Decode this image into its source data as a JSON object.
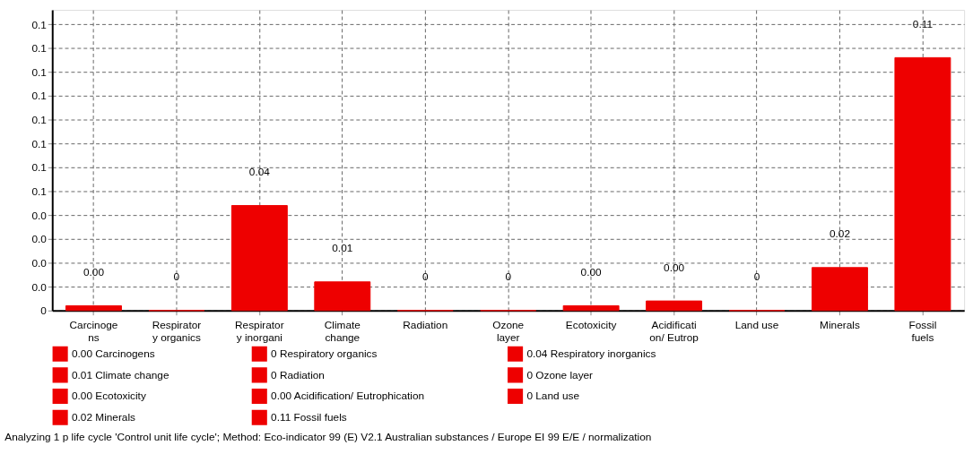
{
  "chart_data": {
    "type": "bar",
    "categories": [
      "Carcinoge\nns",
      "Respirator\ny organics",
      "Respirator\ny inorgani",
      "Climate\nchange",
      "Radiation",
      "Ozone\nlayer",
      "Ecotoxicity",
      "Acidificati\non/ Eutrop",
      "Land use",
      "Minerals",
      "Fossil\nfuels"
    ],
    "series": [
      {
        "name": "0.00 Carcinogens",
        "color": "#ee0000",
        "values": [
          0.002,
          null,
          null,
          null,
          null,
          null,
          null,
          null,
          null,
          null,
          null
        ],
        "value_labels": [
          "0.00",
          null,
          null,
          null,
          null,
          null,
          null,
          null,
          null,
          null,
          null
        ]
      },
      {
        "name": "0 Respiratory organics",
        "color": "#ee0000",
        "values": [
          null,
          0,
          null,
          null,
          null,
          null,
          null,
          null,
          null,
          null,
          null
        ],
        "value_labels": [
          null,
          "0",
          null,
          null,
          null,
          null,
          null,
          null,
          null,
          null,
          null
        ]
      },
      {
        "name": "0.04 Respiratory inorganics",
        "color": "#ee0000",
        "values": [
          null,
          null,
          0.044,
          null,
          null,
          null,
          null,
          null,
          null,
          null,
          null
        ],
        "value_labels": [
          null,
          null,
          "0.04",
          null,
          null,
          null,
          null,
          null,
          null,
          null,
          null
        ]
      },
      {
        "name": "0.01 Climate change",
        "color": "#ee0000",
        "values": [
          null,
          null,
          null,
          0.012,
          null,
          null,
          null,
          null,
          null,
          null,
          null
        ],
        "value_labels": [
          null,
          null,
          null,
          "0.01",
          null,
          null,
          null,
          null,
          null,
          null,
          null
        ]
      },
      {
        "name": "0 Radiation",
        "color": "#ee0000",
        "values": [
          null,
          null,
          null,
          null,
          0,
          null,
          null,
          null,
          null,
          null,
          null
        ],
        "value_labels": [
          null,
          null,
          null,
          null,
          "0",
          null,
          null,
          null,
          null,
          null,
          null
        ]
      },
      {
        "name": "0 Ozone layer",
        "color": "#ee0000",
        "values": [
          null,
          null,
          null,
          null,
          null,
          0,
          null,
          null,
          null,
          null,
          null
        ],
        "value_labels": [
          null,
          null,
          null,
          null,
          null,
          "0",
          null,
          null,
          null,
          null,
          null
        ]
      },
      {
        "name": "0.00 Ecotoxicity",
        "color": "#ee0000",
        "values": [
          null,
          null,
          null,
          null,
          null,
          null,
          0.002,
          null,
          null,
          null,
          null
        ],
        "value_labels": [
          null,
          null,
          null,
          null,
          null,
          null,
          "0.00",
          null,
          null,
          null,
          null
        ]
      },
      {
        "name": "0.00 Acidification/ Eutrophication",
        "color": "#ee0000",
        "values": [
          null,
          null,
          null,
          null,
          null,
          null,
          null,
          0.004,
          null,
          null,
          null
        ],
        "value_labels": [
          null,
          null,
          null,
          null,
          null,
          null,
          null,
          "0.00",
          null,
          null,
          null
        ]
      },
      {
        "name": "0 Land use",
        "color": "#ee0000",
        "values": [
          null,
          null,
          null,
          null,
          null,
          null,
          null,
          null,
          0,
          null,
          null
        ],
        "value_labels": [
          null,
          null,
          null,
          null,
          null,
          null,
          null,
          null,
          "0",
          null,
          null
        ]
      },
      {
        "name": "0.02 Minerals",
        "color": "#ee0000",
        "values": [
          null,
          null,
          null,
          null,
          null,
          null,
          null,
          null,
          null,
          0.018,
          null
        ],
        "value_labels": [
          null,
          null,
          null,
          null,
          null,
          null,
          null,
          null,
          null,
          "0.02",
          null
        ]
      },
      {
        "name": "0.11 Fossil fuels",
        "color": "#ee0000",
        "values": [
          null,
          null,
          null,
          null,
          null,
          null,
          null,
          null,
          null,
          null,
          0.106
        ],
        "value_labels": [
          null,
          null,
          null,
          null,
          null,
          null,
          null,
          null,
          null,
          null,
          "0.11"
        ]
      }
    ],
    "ylim": [
      0,
      0.126
    ],
    "yticks": [
      0,
      {
        "value": 0.01,
        "label": "0.0"
      },
      {
        "value": 0.02,
        "label": "0.0"
      },
      {
        "value": 0.03,
        "label": "0.0"
      },
      {
        "value": 0.04,
        "label": "0.0"
      },
      {
        "value": 0.05,
        "label": "0.1"
      },
      {
        "value": 0.06,
        "label": "0.1"
      },
      {
        "value": 0.07,
        "label": "0.1"
      },
      {
        "value": 0.08,
        "label": "0.1"
      },
      {
        "value": 0.09,
        "label": "0.1"
      },
      {
        "value": 0.1,
        "label": "0.1"
      },
      {
        "value": 0.11,
        "label": "0.1"
      },
      {
        "value": 0.12,
        "label": "0.1"
      }
    ],
    "grid": true,
    "line_style": "dashed",
    "legend": "bottom",
    "annotations": [
      "Analyzing 1 p life cycle 'Control unit life cycle';  Method: Eco-indicator 99 (E) V2.1 Australian substances /  Europe EI 99 E/E / normalization"
    ]
  }
}
